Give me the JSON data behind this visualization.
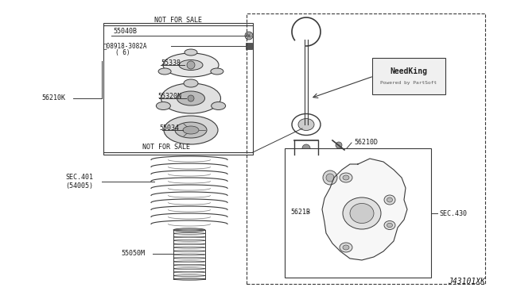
{
  "background_color": "#ffffff",
  "fig_width": 6.4,
  "fig_height": 3.72,
  "dpi": 100,
  "line_color": "#3a3a3a",
  "text_color": "#1a1a1a",
  "watermark_text1": "NeedKing",
  "watermark_text2": "Powered by PartSoft",
  "diagram_id": "J43101XK",
  "parts": {
    "55040B": {
      "label": "55040B"
    },
    "08918": {
      "label": "ⓝ08918-3082A"
    },
    "6": {
      "label": "( 6)"
    },
    "55338": {
      "label": "55338"
    },
    "56210K": {
      "label": "56210K"
    },
    "55320N": {
      "label": "55320N"
    },
    "55034": {
      "label": "55034"
    },
    "SEC401": {
      "label": "SEC.401"
    },
    "54005": {
      "label": "(54005)"
    },
    "55050M": {
      "label": "55050M"
    },
    "56210D": {
      "label": "56210D"
    },
    "5621B": {
      "label": "5621B"
    },
    "SEC430": {
      "label": "SEC.430"
    },
    "NFS": {
      "label": "NOT FOR SALE"
    }
  }
}
